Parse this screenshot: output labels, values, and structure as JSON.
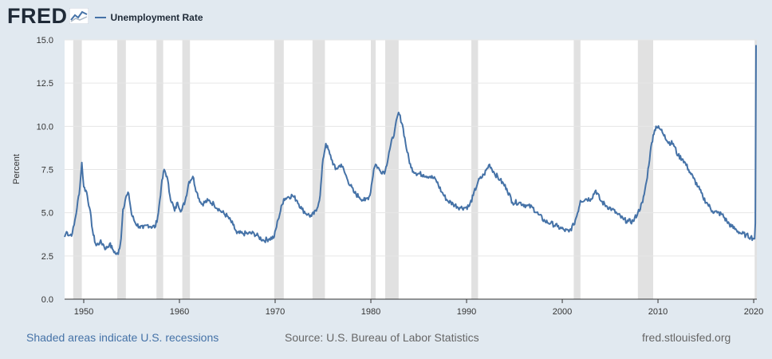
{
  "header": {
    "logo_text": "FRED",
    "legend_label": "Unemployment Rate"
  },
  "footer": {
    "recessions_note": "Shaded areas indicate U.S. recessions",
    "source": "Source: U.S. Bureau of Labor Statistics",
    "site": "fred.stlouisfed.org"
  },
  "colors": {
    "line": "#4572a7",
    "background": "#e1e9f0",
    "plot": "#ffffff",
    "recession": "#e1e1e1",
    "grid": "#e6e6e6"
  },
  "chart_data": {
    "type": "line",
    "title": "",
    "ylabel": "Percent",
    "ylim": [
      0,
      15
    ],
    "xlim": [
      1948,
      2020.33
    ],
    "y_ticks": [
      "0.0",
      "2.5",
      "5.0",
      "7.5",
      "10.0",
      "12.5",
      "15.0"
    ],
    "x_ticks": [
      "1950",
      "1960",
      "1970",
      "1980",
      "1990",
      "2000",
      "2010",
      "2020"
    ],
    "grid": true,
    "legend_placement": "top-left",
    "recessions": [
      [
        1948.9,
        1949.8
      ],
      [
        1953.5,
        1954.4
      ],
      [
        1957.6,
        1958.3
      ],
      [
        1960.3,
        1961.1
      ],
      [
        1969.9,
        1970.9
      ],
      [
        1973.9,
        1975.2
      ],
      [
        1980.0,
        1980.5
      ],
      [
        1981.5,
        1982.9
      ],
      [
        1990.5,
        1991.2
      ],
      [
        2001.2,
        2001.9
      ],
      [
        2007.9,
        2009.5
      ],
      [
        2020.1,
        2020.33
      ]
    ],
    "series": [
      {
        "name": "Unemployment Rate",
        "points": [
          [
            1948.0,
            3.6
          ],
          [
            1948.2,
            3.9
          ],
          [
            1948.5,
            3.7
          ],
          [
            1948.8,
            3.8
          ],
          [
            1949.0,
            4.3
          ],
          [
            1949.3,
            5.3
          ],
          [
            1949.6,
            6.5
          ],
          [
            1949.8,
            7.9
          ],
          [
            1950.0,
            6.5
          ],
          [
            1950.3,
            6.2
          ],
          [
            1950.6,
            5.3
          ],
          [
            1951.0,
            3.7
          ],
          [
            1951.3,
            3.1
          ],
          [
            1951.7,
            3.3
          ],
          [
            1952.0,
            3.2
          ],
          [
            1952.3,
            2.9
          ],
          [
            1952.7,
            3.2
          ],
          [
            1953.0,
            2.9
          ],
          [
            1953.4,
            2.6
          ],
          [
            1953.6,
            2.6
          ],
          [
            1953.9,
            3.5
          ],
          [
            1954.1,
            5.2
          ],
          [
            1954.4,
            5.9
          ],
          [
            1954.7,
            6.1
          ],
          [
            1955.0,
            4.9
          ],
          [
            1955.4,
            4.4
          ],
          [
            1955.8,
            4.2
          ],
          [
            1956.2,
            4.1
          ],
          [
            1956.7,
            4.3
          ],
          [
            1957.0,
            4.2
          ],
          [
            1957.5,
            4.2
          ],
          [
            1957.8,
            5.0
          ],
          [
            1958.1,
            6.5
          ],
          [
            1958.4,
            7.5
          ],
          [
            1958.7,
            7.1
          ],
          [
            1959.0,
            6.0
          ],
          [
            1959.5,
            5.1
          ],
          [
            1959.8,
            5.6
          ],
          [
            1960.2,
            5.1
          ],
          [
            1960.6,
            5.7
          ],
          [
            1961.0,
            6.8
          ],
          [
            1961.4,
            7.1
          ],
          [
            1961.8,
            6.2
          ],
          [
            1962.3,
            5.5
          ],
          [
            1963.0,
            5.7
          ],
          [
            1963.6,
            5.5
          ],
          [
            1964.3,
            5.1
          ],
          [
            1965.0,
            4.8
          ],
          [
            1965.6,
            4.3
          ],
          [
            1966.0,
            3.8
          ],
          [
            1966.6,
            3.8
          ],
          [
            1967.2,
            3.8
          ],
          [
            1967.8,
            3.8
          ],
          [
            1968.3,
            3.6
          ],
          [
            1968.8,
            3.4
          ],
          [
            1969.4,
            3.5
          ],
          [
            1969.9,
            3.6
          ],
          [
            1970.3,
            4.6
          ],
          [
            1970.9,
            5.8
          ],
          [
            1971.3,
            5.9
          ],
          [
            1971.8,
            6.0
          ],
          [
            1972.3,
            5.7
          ],
          [
            1972.8,
            5.2
          ],
          [
            1973.4,
            4.9
          ],
          [
            1973.8,
            4.8
          ],
          [
            1974.3,
            5.1
          ],
          [
            1974.7,
            6.0
          ],
          [
            1975.0,
            8.1
          ],
          [
            1975.3,
            9.0
          ],
          [
            1975.7,
            8.4
          ],
          [
            1976.3,
            7.5
          ],
          [
            1976.9,
            7.8
          ],
          [
            1977.5,
            7.0
          ],
          [
            1978.2,
            6.2
          ],
          [
            1978.8,
            5.9
          ],
          [
            1979.4,
            5.7
          ],
          [
            1979.9,
            6.0
          ],
          [
            1980.3,
            7.5
          ],
          [
            1980.5,
            7.8
          ],
          [
            1981.0,
            7.4
          ],
          [
            1981.5,
            7.4
          ],
          [
            1981.9,
            8.5
          ],
          [
            1982.5,
            9.8
          ],
          [
            1982.9,
            10.8
          ],
          [
            1983.3,
            10.1
          ],
          [
            1983.8,
            8.5
          ],
          [
            1984.2,
            7.6
          ],
          [
            1984.7,
            7.3
          ],
          [
            1985.5,
            7.2
          ],
          [
            1986.2,
            7.1
          ],
          [
            1986.8,
            6.9
          ],
          [
            1987.4,
            6.2
          ],
          [
            1988.0,
            5.7
          ],
          [
            1988.6,
            5.5
          ],
          [
            1989.3,
            5.3
          ],
          [
            1989.9,
            5.3
          ],
          [
            1990.3,
            5.4
          ],
          [
            1990.7,
            6.0
          ],
          [
            1991.2,
            6.8
          ],
          [
            1991.8,
            7.2
          ],
          [
            1992.4,
            7.8
          ],
          [
            1992.9,
            7.3
          ],
          [
            1993.5,
            6.9
          ],
          [
            1994.2,
            6.4
          ],
          [
            1994.8,
            5.6
          ],
          [
            1995.5,
            5.6
          ],
          [
            1996.3,
            5.4
          ],
          [
            1996.9,
            5.3
          ],
          [
            1997.5,
            4.9
          ],
          [
            1998.2,
            4.5
          ],
          [
            1998.8,
            4.4
          ],
          [
            1999.5,
            4.2
          ],
          [
            2000.2,
            4.0
          ],
          [
            2000.7,
            3.9
          ],
          [
            2001.2,
            4.3
          ],
          [
            2001.6,
            5.0
          ],
          [
            2001.9,
            5.7
          ],
          [
            2002.5,
            5.8
          ],
          [
            2003.0,
            5.8
          ],
          [
            2003.5,
            6.3
          ],
          [
            2004.0,
            5.7
          ],
          [
            2004.6,
            5.4
          ],
          [
            2005.2,
            5.2
          ],
          [
            2005.8,
            4.9
          ],
          [
            2006.4,
            4.6
          ],
          [
            2006.9,
            4.5
          ],
          [
            2007.4,
            4.5
          ],
          [
            2007.9,
            5.0
          ],
          [
            2008.4,
            5.6
          ],
          [
            2008.8,
            6.8
          ],
          [
            2009.2,
            8.5
          ],
          [
            2009.5,
            9.5
          ],
          [
            2009.8,
            10.0
          ],
          [
            2010.3,
            9.8
          ],
          [
            2010.7,
            9.5
          ],
          [
            2011.0,
            9.1
          ],
          [
            2011.6,
            9.0
          ],
          [
            2012.1,
            8.3
          ],
          [
            2012.6,
            8.1
          ],
          [
            2013.2,
            7.5
          ],
          [
            2013.7,
            7.0
          ],
          [
            2014.2,
            6.5
          ],
          [
            2014.7,
            5.9
          ],
          [
            2015.2,
            5.5
          ],
          [
            2015.7,
            5.1
          ],
          [
            2016.2,
            5.0
          ],
          [
            2016.7,
            4.9
          ],
          [
            2017.2,
            4.5
          ],
          [
            2017.7,
            4.2
          ],
          [
            2018.2,
            4.0
          ],
          [
            2018.7,
            3.8
          ],
          [
            2019.2,
            3.7
          ],
          [
            2019.7,
            3.6
          ],
          [
            2020.0,
            3.5
          ],
          [
            2020.1,
            3.5
          ],
          [
            2020.17,
            4.4
          ],
          [
            2020.25,
            14.7
          ]
        ]
      }
    ]
  }
}
